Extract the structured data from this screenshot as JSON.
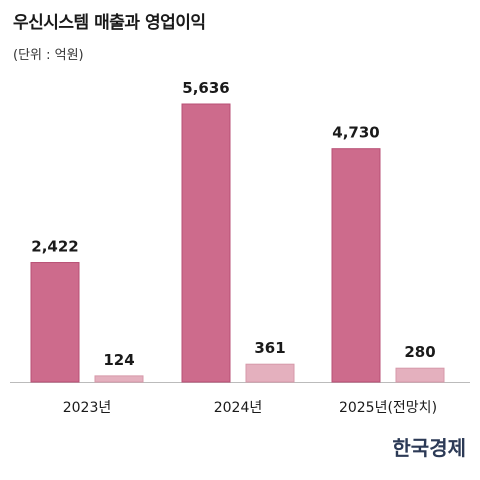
{
  "header": {
    "title": "우신시스템 매출과 영업이익",
    "unit_note": "(단위 : 억원)"
  },
  "logo_text": "한국경제",
  "colors": {
    "revenue": "#cd6b8c",
    "revenue_edge": "#b84f74",
    "profit": "#e4b0be",
    "profit_edge": "#d699a9",
    "axis": "#bbbbbb",
    "text": "#1a1a1a"
  },
  "chart_data": {
    "type": "bar",
    "categories": [
      "2023년",
      "2024년",
      "2025년(전망치)"
    ],
    "series": [
      {
        "values": [
          2422,
          5636,
          4730
        ]
      },
      {
        "values": [
          124,
          361,
          280
        ]
      }
    ],
    "data_labels": [
      [
        "2,422",
        "5,636",
        "4,730"
      ],
      [
        "124",
        "361",
        "280"
      ]
    ],
    "title": "우신시스템 매출과 영업이익",
    "xlabel": "",
    "ylabel": "",
    "ylim": [
      0,
      5636
    ],
    "grid": false
  }
}
